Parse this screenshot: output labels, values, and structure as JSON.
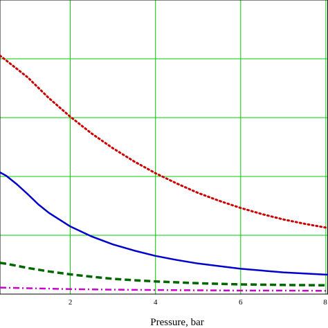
{
  "chart_data": {
    "type": "line",
    "xlabel": "Pressure, bar",
    "ylabel": "",
    "xlim": [
      0.35,
      8.05
    ],
    "ylim": [
      0,
      1
    ],
    "x_ticks": [
      2,
      4,
      6,
      8
    ],
    "x_tick_labels": [
      "2",
      "4",
      "6",
      "8"
    ],
    "grid": true,
    "grid_color": "#00cc00",
    "series": [
      {
        "style": "dotted",
        "color": "#cc0000",
        "x": [
          0.35,
          1,
          1.5,
          2,
          2.5,
          3,
          3.5,
          4,
          4.5,
          5,
          5.5,
          6,
          6.5,
          7,
          7.5,
          8,
          8.05
        ],
        "y": [
          0.811,
          0.737,
          0.666,
          0.603,
          0.546,
          0.496,
          0.451,
          0.411,
          0.376,
          0.344,
          0.317,
          0.293,
          0.272,
          0.254,
          0.239,
          0.226,
          0.225
        ]
      },
      {
        "style": "solid",
        "color": "#0000cc",
        "x": [
          0.35,
          0.5,
          0.75,
          1,
          1.25,
          1.5,
          2,
          2.5,
          3,
          3.5,
          4,
          4.5,
          5,
          6,
          7,
          8,
          8.05
        ],
        "y": [
          0.414,
          0.402,
          0.373,
          0.34,
          0.305,
          0.276,
          0.23,
          0.196,
          0.169,
          0.148,
          0.13,
          0.116,
          0.104,
          0.086,
          0.074,
          0.066,
          0.066
        ]
      },
      {
        "style": "dashed",
        "color": "#006600",
        "x": [
          0.35,
          0.5,
          1,
          1.5,
          2,
          2.5,
          3,
          3.5,
          4,
          5,
          6,
          7,
          8,
          8.05
        ],
        "y": [
          0.106,
          0.103,
          0.089,
          0.077,
          0.067,
          0.059,
          0.052,
          0.047,
          0.043,
          0.037,
          0.033,
          0.031,
          0.03,
          0.03
        ]
      },
      {
        "style": "dash-dot",
        "color": "#cc00cc",
        "x": [
          0.35,
          1,
          2,
          3,
          4,
          5,
          6,
          7,
          8,
          8.05
        ],
        "y": [
          0.022,
          0.02,
          0.017,
          0.015,
          0.014,
          0.013,
          0.012,
          0.012,
          0.011,
          0.011
        ]
      }
    ]
  }
}
